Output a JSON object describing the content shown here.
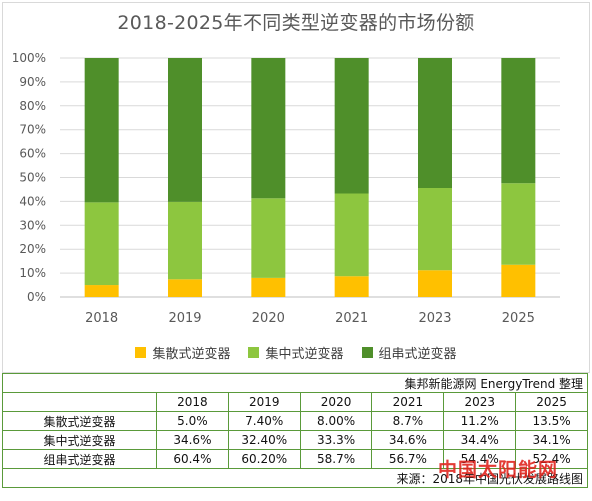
{
  "chart_data": {
    "type": "bar",
    "stacked": true,
    "title": "2018-2025年不同类型逆变器的市场份额",
    "categories": [
      "2018",
      "2019",
      "2020",
      "2021",
      "2023",
      "2025"
    ],
    "series": [
      {
        "name": "集散式逆变器",
        "color": "#ffc000",
        "values": [
          5.0,
          7.4,
          8.0,
          8.7,
          11.2,
          13.5
        ]
      },
      {
        "name": "集中式逆变器",
        "color": "#8dc63f",
        "values": [
          34.6,
          32.4,
          33.3,
          34.6,
          34.4,
          34.1
        ]
      },
      {
        "name": "组串式逆变器",
        "color": "#4f8f2a",
        "values": [
          60.4,
          60.2,
          58.7,
          56.7,
          54.4,
          52.4
        ]
      }
    ],
    "yticks": [
      "0%",
      "10%",
      "20%",
      "30%",
      "40%",
      "50%",
      "60%",
      "70%",
      "80%",
      "90%",
      "100%"
    ],
    "ylim": [
      0,
      100
    ],
    "legend_position": "bottom",
    "grid": true
  },
  "table": {
    "credit": "集邦新能源网 EnergyTrend 整理",
    "years": [
      "2018",
      "2019",
      "2020",
      "2021",
      "2023",
      "2025"
    ],
    "rows": [
      {
        "label": "集散式逆变器",
        "cells": [
          "5.0%",
          "7.40%",
          "8.00%",
          "8.7%",
          "11.2%",
          "13.5%"
        ]
      },
      {
        "label": "集中式逆变器",
        "cells": [
          "34.6%",
          "32.40%",
          "33.3%",
          "34.6%",
          "34.4%",
          "34.1%"
        ]
      },
      {
        "label": "组串式逆变器",
        "cells": [
          "60.4%",
          "60.20%",
          "58.7%",
          "56.7%",
          "54.4%",
          "52.4%"
        ]
      }
    ],
    "source": "来源：2018年中国光伏发展路线图"
  },
  "watermark": "中国太阳能网"
}
